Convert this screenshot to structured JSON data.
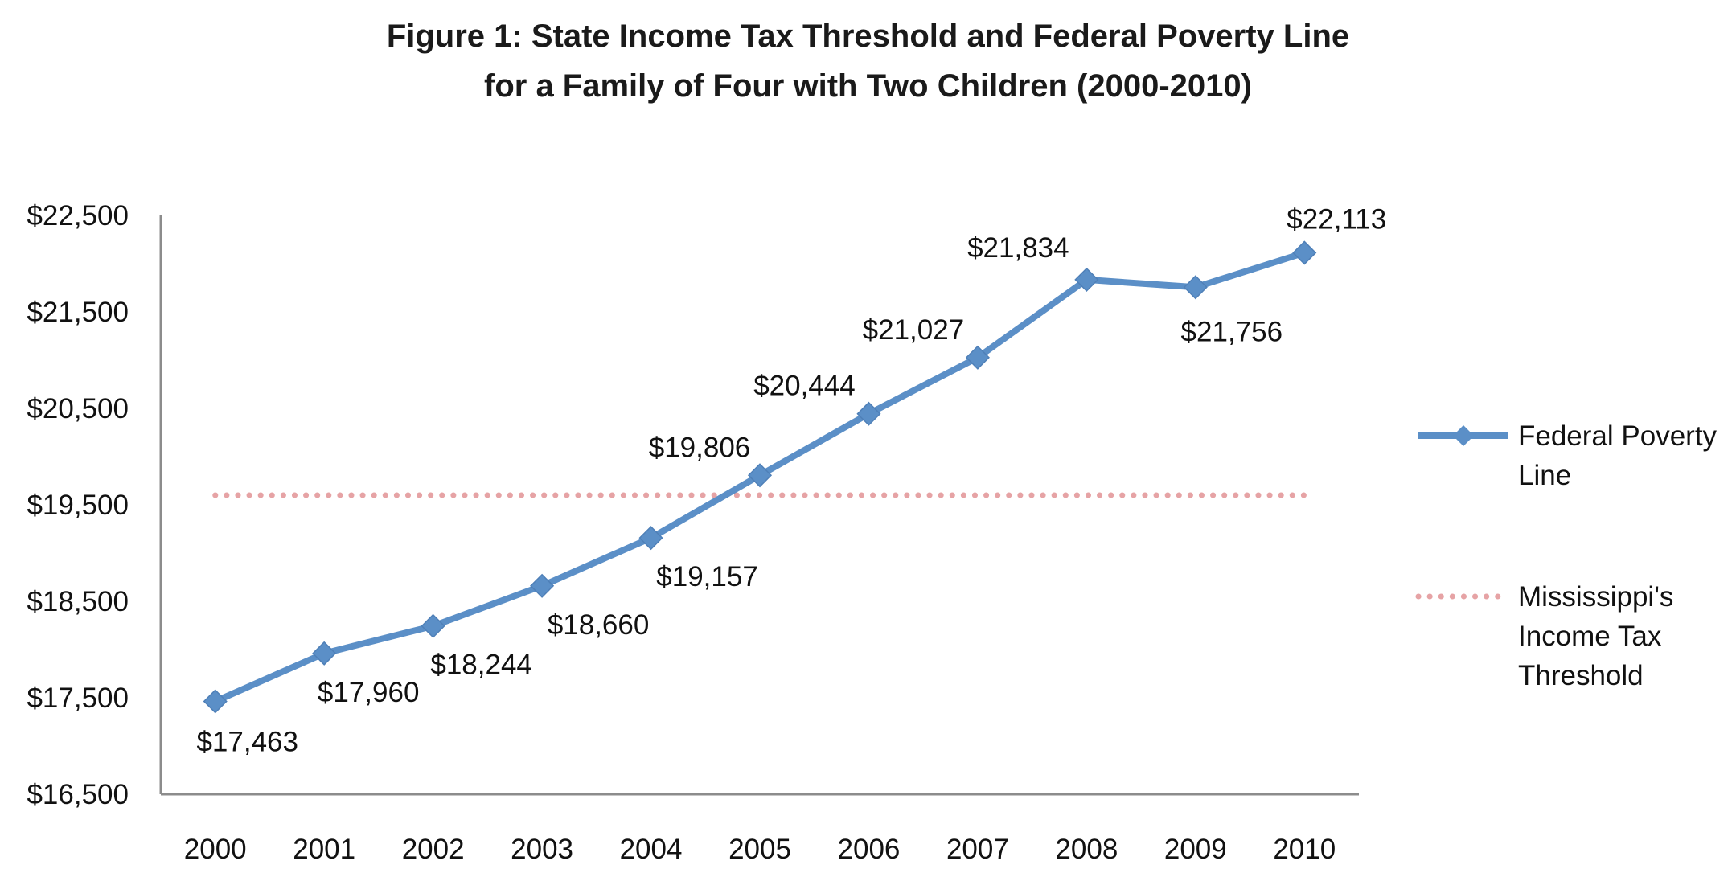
{
  "chart_data": {
    "type": "line",
    "title_lines": [
      "Figure 1: State Income Tax Threshold and Federal Poverty Line",
      "for a Family of Four with Two Children (2000-2010)"
    ],
    "categories": [
      "2000",
      "2001",
      "2002",
      "2003",
      "2004",
      "2005",
      "2006",
      "2007",
      "2008",
      "2009",
      "2010"
    ],
    "y_ticks": [
      "$16,500",
      "$17,500",
      "$18,500",
      "$19,500",
      "$20,500",
      "$21,500",
      "$22,500"
    ],
    "y_tick_values": [
      16500,
      17500,
      18500,
      19500,
      20500,
      21500,
      22500
    ],
    "ylim": [
      16500,
      22500
    ],
    "grid": false,
    "legend_position": "right",
    "series": [
      {
        "name": "Federal Poverty Line",
        "legend_lines": [
          "Federal Poverty",
          "Line"
        ],
        "color": "#5b8fc7",
        "style": "solid-diamond",
        "values": [
          17463,
          17960,
          18244,
          18660,
          19157,
          19806,
          20444,
          21027,
          21834,
          21756,
          22113
        ],
        "labels": [
          "$17,463",
          "$17,960",
          "$18,244",
          "$18,660",
          "$19,157",
          "$19,806",
          "$20,444",
          "$21,027",
          "$21,834",
          "$21,756",
          "$22,113"
        ]
      },
      {
        "name": "Mississippi's Income Tax Threshold",
        "legend_lines": [
          "Mississippi's",
          "Income Tax",
          "Threshold"
        ],
        "color": "#e6a3a5",
        "style": "dotted",
        "values": [
          19600,
          19600,
          19600,
          19600,
          19600,
          19600,
          19600,
          19600,
          19600,
          19600,
          19600
        ]
      }
    ]
  }
}
